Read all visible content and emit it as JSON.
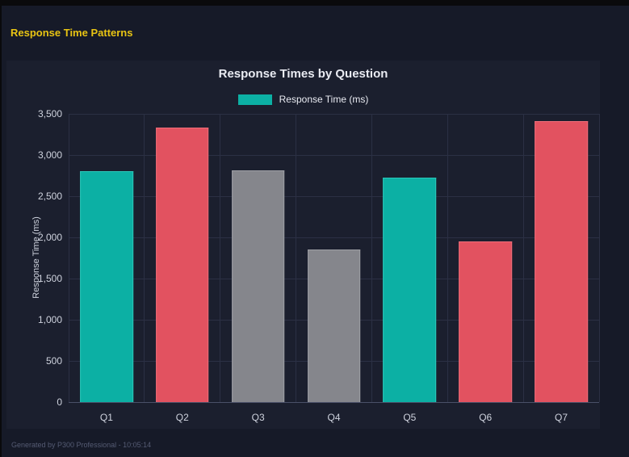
{
  "page": {
    "heading": "Response Time Patterns",
    "footer": "Generated by P300 Professional - 10:05:14"
  },
  "colors": {
    "page_bg": "#161a28",
    "top_strip": "#0a0a0c",
    "canvas_bg": "#1b1f2e",
    "heading": "#e8c413",
    "title_text": "#e9ebf2",
    "tick_text": "#cfd3de",
    "grid": "#2b3044",
    "axis": "#4a5068",
    "footer_text": "#555b73"
  },
  "chart_data": {
    "type": "bar",
    "title": "Response Times by Question",
    "categories": [
      "Q1",
      "Q2",
      "Q3",
      "Q4",
      "Q5",
      "Q6",
      "Q7"
    ],
    "series": [
      {
        "name": "Response Time (ms)",
        "values": [
          2800,
          3330,
          2810,
          1850,
          2730,
          1950,
          3410
        ],
        "colors": [
          "#0cb0a4",
          "#e25260",
          "#85868c",
          "#85868c",
          "#0cb0a4",
          "#e25260",
          "#e25260"
        ],
        "border_colors": [
          "#2bc7ba",
          "#ee6d79",
          "#9fa0a6",
          "#9fa0a6",
          "#2bc7ba",
          "#ee6d79",
          "#ee6d79"
        ]
      }
    ],
    "legend": {
      "label": "Response Time (ms)",
      "swatch_color": "#0cb0a4",
      "position": "top"
    },
    "xlabel": "",
    "ylabel": "Response Time (ms)",
    "ylim": [
      0,
      3500
    ],
    "yticks": [
      0,
      500,
      1000,
      1500,
      2000,
      2500,
      3000,
      3500
    ],
    "ytick_labels": [
      "0",
      "500",
      "1,000",
      "1,500",
      "2,000",
      "2,500",
      "3,000",
      "3,500"
    ],
    "grid": true,
    "bar_width_fraction": 0.7
  }
}
